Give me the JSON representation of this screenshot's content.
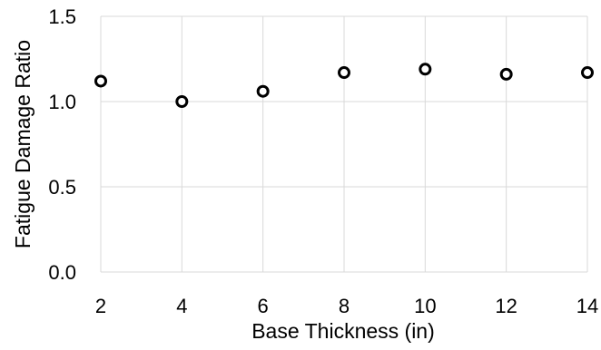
{
  "chart_data": {
    "type": "scatter",
    "title": "",
    "xlabel": "Base Thickness (in)",
    "ylabel": "Fatigue Damage Ratio",
    "x_ticks": [
      "2",
      "4",
      "6",
      "8",
      "10",
      "12",
      "14"
    ],
    "y_ticks": [
      "0.0",
      "0.5",
      "1.0",
      "1.5"
    ],
    "xlim": [
      2,
      14
    ],
    "ylim": [
      0,
      1.5
    ],
    "grid": true,
    "legend": "none",
    "marker": "open-circle",
    "series": [
      {
        "x": [
          2,
          4,
          6,
          8,
          10,
          12,
          14
        ],
        "y": [
          1.12,
          1.0,
          1.06,
          1.17,
          1.19,
          1.16,
          1.17
        ]
      }
    ],
    "colors": {
      "marker_stroke": "#000000",
      "grid": "#d9d9d9",
      "text": "#000000"
    }
  }
}
